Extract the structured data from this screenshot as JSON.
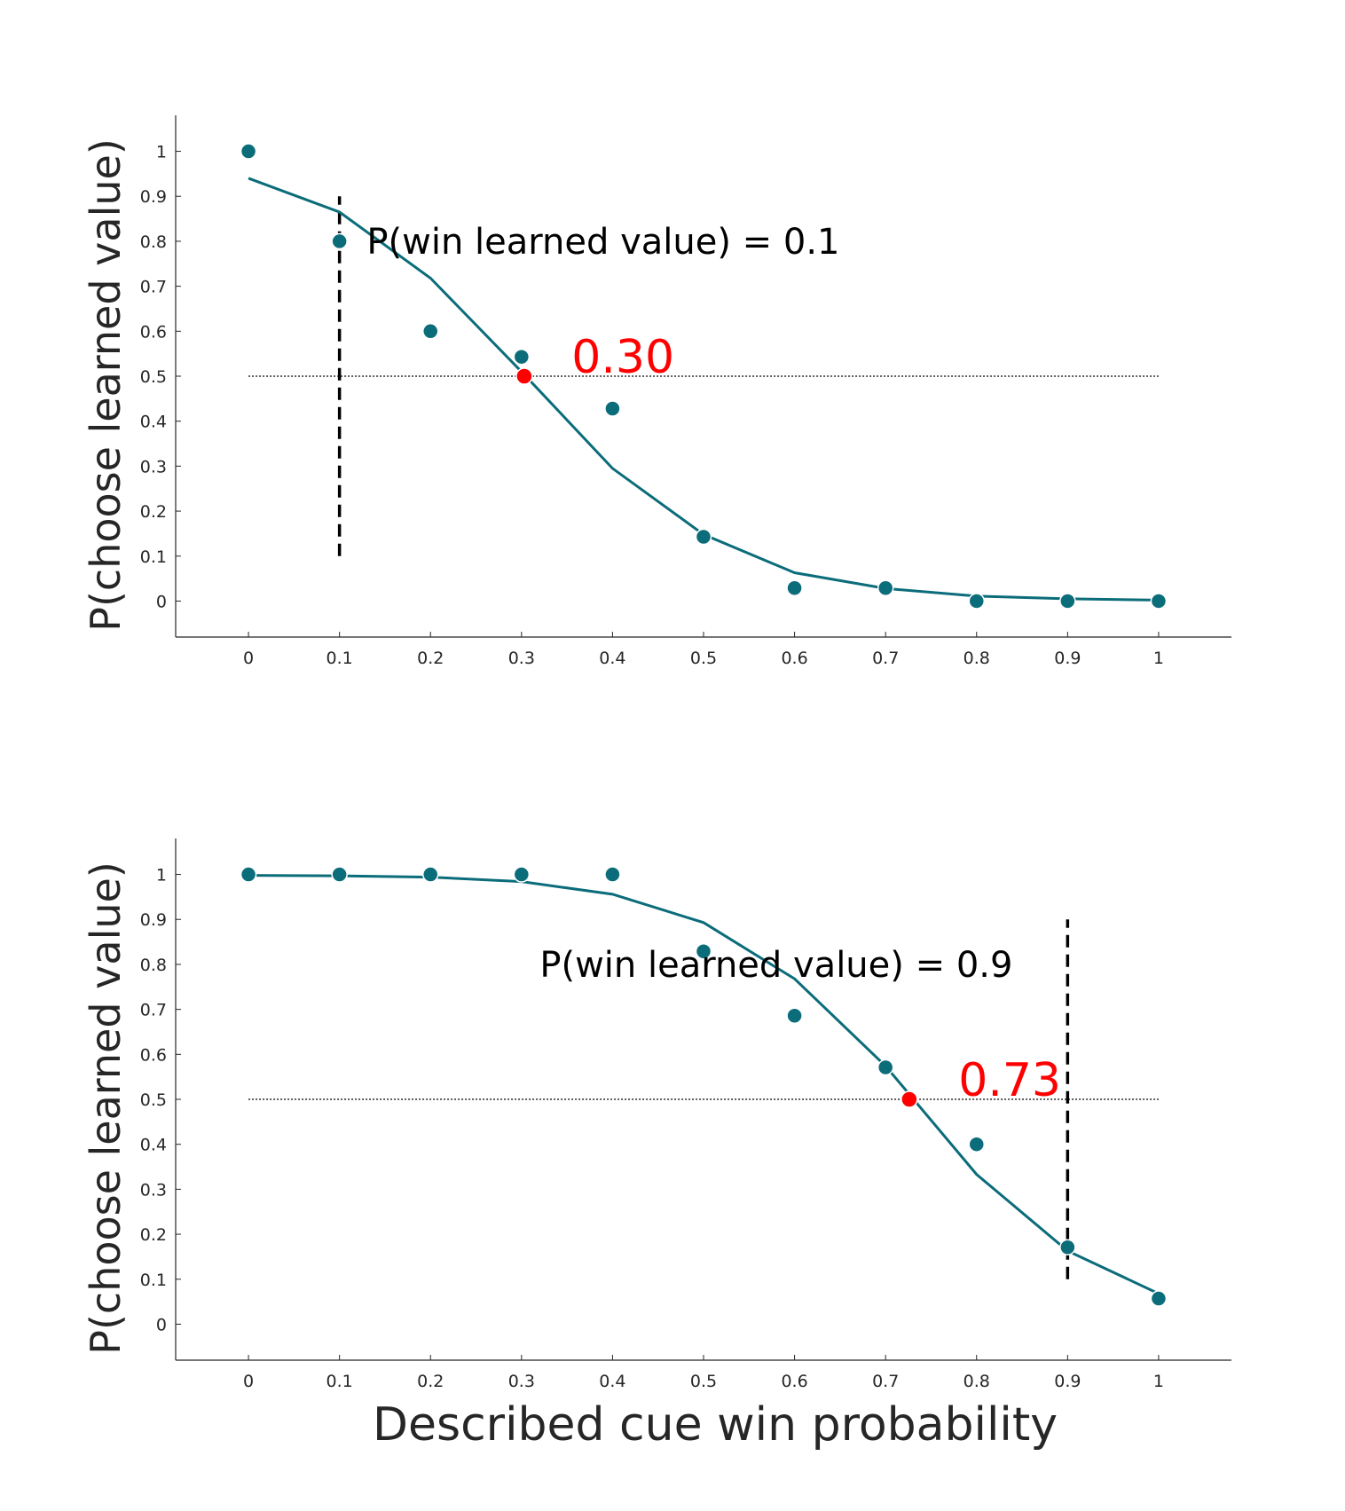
{
  "chart_data": [
    {
      "type": "line",
      "ylabel": "P(choose learned value)",
      "xlabel": "",
      "xlim": [
        -0.08,
        1.08
      ],
      "ylim": [
        -0.08,
        1.08
      ],
      "xticks": [
        "0",
        "0.1",
        "0.2",
        "0.3",
        "0.4",
        "0.5",
        "0.6",
        "0.7",
        "0.8",
        "0.9",
        "1"
      ],
      "yticks": [
        "0",
        "0.1",
        "0.2",
        "0.3",
        "0.4",
        "0.5",
        "0.6",
        "0.7",
        "0.8",
        "0.9",
        "1"
      ],
      "x": [
        0,
        0.1,
        0.2,
        0.3,
        0.4,
        0.5,
        0.6,
        0.7,
        0.8,
        0.9,
        1
      ],
      "observed": [
        1.0,
        0.8,
        0.6,
        0.543,
        0.428,
        0.143,
        0.029,
        0.029,
        0.0,
        0.0,
        0.0
      ],
      "fit": [
        0.94,
        0.865,
        0.718,
        0.51,
        0.295,
        0.148,
        0.063,
        0.028,
        0.011,
        0.005,
        0.002
      ],
      "reference_line_y": 0.5,
      "learned_value_x": 0.1,
      "learned_value_range": [
        0.1,
        0.9
      ],
      "annotation": "P(win learned value) = 0.1",
      "annotation_pos": [
        0.13,
        0.8
      ],
      "threshold_x": 0.303,
      "threshold_label": "0.30",
      "threshold_label_pos": [
        0.355,
        0.5
      ],
      "colors": {
        "data": "#0b6c7a",
        "threshold": "#ff0000",
        "guide": "#000000"
      }
    },
    {
      "type": "line",
      "ylabel": "P(choose learned value)",
      "xlabel": "Described cue win probability",
      "xlim": [
        -0.08,
        1.08
      ],
      "ylim": [
        -0.08,
        1.08
      ],
      "xticks": [
        "0",
        "0.1",
        "0.2",
        "0.3",
        "0.4",
        "0.5",
        "0.6",
        "0.7",
        "0.8",
        "0.9",
        "1"
      ],
      "yticks": [
        "0",
        "0.1",
        "0.2",
        "0.3",
        "0.4",
        "0.5",
        "0.6",
        "0.7",
        "0.8",
        "0.9",
        "1"
      ],
      "x": [
        0,
        0.1,
        0.2,
        0.3,
        0.4,
        0.5,
        0.6,
        0.7,
        0.8,
        0.9,
        1
      ],
      "observed": [
        1.0,
        1.0,
        1.0,
        1.0,
        1.0,
        0.829,
        0.686,
        0.571,
        0.4,
        0.171,
        0.057
      ],
      "fit": [
        0.998,
        0.997,
        0.994,
        0.984,
        0.956,
        0.893,
        0.768,
        0.574,
        0.333,
        0.163,
        0.068
      ],
      "reference_line_y": 0.5,
      "learned_value_x": 0.9,
      "learned_value_range": [
        0.1,
        0.9
      ],
      "annotation": "P(win learned value) = 0.9",
      "annotation_pos": [
        0.32,
        0.8
      ],
      "threshold_x": 0.726,
      "threshold_label": "0.73",
      "threshold_label_pos": [
        0.78,
        0.5
      ],
      "colors": {
        "data": "#0b6c7a",
        "threshold": "#ff0000",
        "guide": "#000000"
      }
    }
  ]
}
